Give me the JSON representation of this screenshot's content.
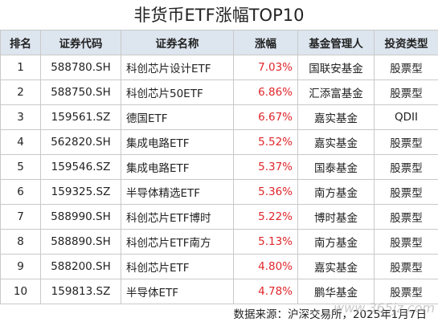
{
  "title": "非货币ETF涨幅TOP10",
  "table": {
    "header": [
      "排名",
      "证券代码",
      "证券名称",
      "涨幅",
      "基金管理人",
      "投资类型"
    ],
    "rows": [
      [
        "1",
        "588780.SH",
        "科创芯片设计ETF",
        "7.03%",
        "国联安基金",
        "股票型"
      ],
      [
        "2",
        "588750.SH",
        "科创芯片50ETF",
        "6.86%",
        "汇添富基金",
        "股票型"
      ],
      [
        "3",
        "159561.SZ",
        "德国ETF",
        "6.67%",
        "嘉实基金",
        "QDII"
      ],
      [
        "4",
        "562820.SH",
        "集成电路ETF",
        "5.52%",
        "嘉实基金",
        "股票型"
      ],
      [
        "5",
        "159546.SZ",
        "集成电路ETF",
        "5.37%",
        "国泰基金",
        "股票型"
      ],
      [
        "6",
        "159325.SZ",
        "半导体精选ETF",
        "5.36%",
        "南方基金",
        "股票型"
      ],
      [
        "7",
        "588990.SH",
        "科创芯片ETF博时",
        "5.22%",
        "博时基金",
        "股票型"
      ],
      [
        "8",
        "588890.SH",
        "科创芯片ETF南方",
        "5.13%",
        "南方基金",
        "股票型"
      ],
      [
        "9",
        "588200.SH",
        "科创芯片ETF",
        "4.80%",
        "嘉实基金",
        "股票型"
      ],
      [
        "10",
        "159813.SZ",
        "半导体ETF",
        "4.78%",
        "鹏华基金",
        "股票型"
      ]
    ]
  },
  "footer": "数据来源：沪深交易所，2025年1月7日",
  "watermark": "www.365jz.com"
}
